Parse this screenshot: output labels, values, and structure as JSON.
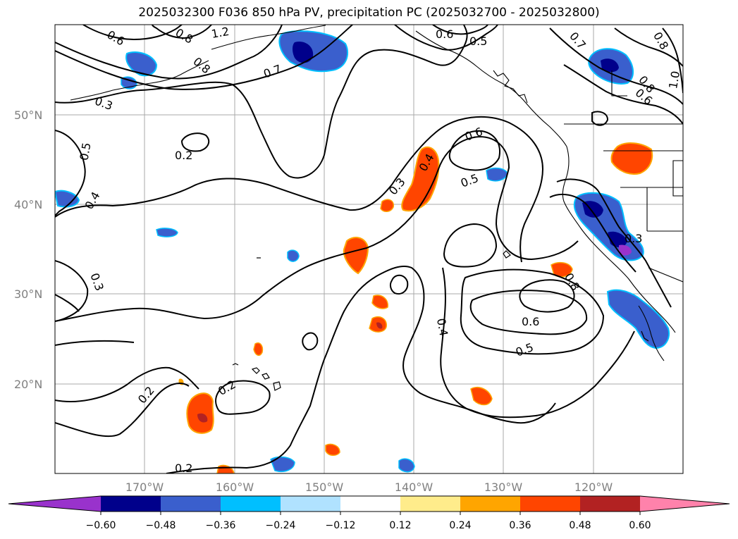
{
  "title": "2025032300 F036 850 hPa PV, precipitation PC (2025032700 - 2025032800)",
  "lat_labels": [
    "50°N",
    "40°N",
    "30°N",
    "20°N"
  ],
  "lon_labels": [
    "170°W",
    "160°W",
    "150°W",
    "140°W",
    "130°W",
    "120°W"
  ],
  "colorbar": {
    "ticks": [
      "−0.60",
      "−0.48",
      "−0.36",
      "−0.24",
      "−0.12",
      "0.12",
      "0.24",
      "0.36",
      "0.48",
      "0.60"
    ],
    "colors": [
      "#9932cc",
      "#00008b",
      "#3a5fcd",
      "#00bfff",
      "#b0e2ff",
      "#ffffff",
      "#ffec8b",
      "#ffa500",
      "#ff4500",
      "#b22222",
      "#ff82ab"
    ]
  },
  "contour_labels": [
    "0.6",
    "0.8",
    "1.2",
    "0.7",
    "0.8",
    "0.6",
    "0.5",
    "0.7",
    "0.8",
    "1.0",
    "0.8",
    "0.6",
    "0.3",
    "0.5",
    "0.2",
    "0.4",
    "0.3",
    "0.4",
    "0.6",
    "0.5",
    "0.3",
    "0.8",
    "0.6",
    "0.5",
    "0.4",
    "0.2",
    "0.2",
    "0.2",
    "0.3"
  ],
  "map_extent": {
    "lon": [
      -180,
      -110
    ],
    "lat": [
      10,
      60
    ]
  }
}
